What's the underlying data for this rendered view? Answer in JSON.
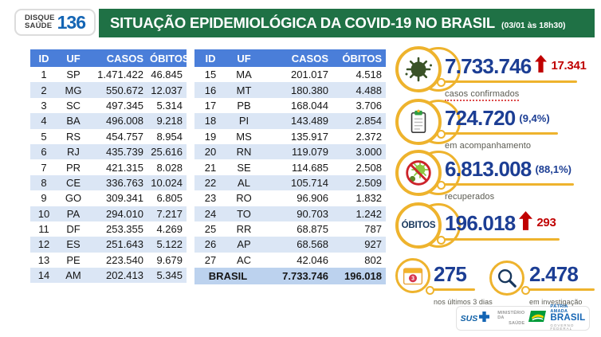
{
  "header": {
    "logo": {
      "line1": "DISQUE",
      "line2": "SAÚDE",
      "number": "136"
    },
    "title": "SITUAÇÃO EPIDEMIOLÓGICA DA COVID-19 NO BRASIL",
    "timestamp": "(03/01 às 18h30)"
  },
  "table": {
    "columns": [
      "ID",
      "UF",
      "CASOS",
      "ÓBITOS"
    ],
    "left_rows": [
      [
        "1",
        "SP",
        "1.471.422",
        "46.845"
      ],
      [
        "2",
        "MG",
        "550.672",
        "12.037"
      ],
      [
        "3",
        "SC",
        "497.345",
        "5.314"
      ],
      [
        "4",
        "BA",
        "496.008",
        "9.218"
      ],
      [
        "5",
        "RS",
        "454.757",
        "8.954"
      ],
      [
        "6",
        "RJ",
        "435.739",
        "25.616"
      ],
      [
        "7",
        "PR",
        "421.315",
        "8.028"
      ],
      [
        "8",
        "CE",
        "336.763",
        "10.024"
      ],
      [
        "9",
        "GO",
        "309.341",
        "6.805"
      ],
      [
        "10",
        "PA",
        "294.010",
        "7.217"
      ],
      [
        "11",
        "DF",
        "253.355",
        "4.269"
      ],
      [
        "12",
        "ES",
        "251.643",
        "5.122"
      ],
      [
        "13",
        "PE",
        "223.540",
        "9.679"
      ],
      [
        "14",
        "AM",
        "202.413",
        "5.345"
      ]
    ],
    "right_rows": [
      [
        "15",
        "MA",
        "201.017",
        "4.518"
      ],
      [
        "16",
        "MT",
        "180.380",
        "4.488"
      ],
      [
        "17",
        "PB",
        "168.044",
        "3.706"
      ],
      [
        "18",
        "PI",
        "143.489",
        "2.854"
      ],
      [
        "19",
        "MS",
        "135.917",
        "2.372"
      ],
      [
        "20",
        "RN",
        "119.079",
        "3.000"
      ],
      [
        "21",
        "SE",
        "114.685",
        "2.508"
      ],
      [
        "22",
        "AL",
        "105.714",
        "2.509"
      ],
      [
        "23",
        "RO",
        "96.906",
        "1.832"
      ],
      [
        "24",
        "TO",
        "90.703",
        "1.242"
      ],
      [
        "25",
        "RR",
        "68.875",
        "787"
      ],
      [
        "26",
        "AP",
        "68.568",
        "927"
      ],
      [
        "27",
        "AC",
        "42.046",
        "802"
      ]
    ],
    "total": {
      "label": "BRASIL",
      "casos": "7.733.746",
      "obitos": "196.018"
    }
  },
  "stats": {
    "confirmed": {
      "value": "7.733.746",
      "delta": "17.341",
      "label": "casos confirmados"
    },
    "monitoring": {
      "value": "724.720",
      "percent": "(9,4%)",
      "label": "em acompanhamento"
    },
    "recovered": {
      "value": "6.813.008",
      "percent": "(88,1%)",
      "label": "recuperados"
    },
    "deaths": {
      "icon_text": "ÓBITOS",
      "value": "196.018",
      "delta": "293"
    },
    "last_days": {
      "value": "275",
      "label": "nos últimos 3 dias",
      "badge": "3"
    },
    "investigation": {
      "value": "2.478",
      "label": "em investigação"
    }
  },
  "footer": {
    "sus_label": "SUS",
    "ministry": [
      "MINISTÉRIO DA",
      "SAÚDE"
    ],
    "brand_top": "PÁTRIA AMADA",
    "brand_name": "BRASIL",
    "brand_sub": "GOVERNO FEDERAL"
  },
  "colors": {
    "header_green": "#1f7145",
    "table_header_blue": "#4a7ed9",
    "row_alt_blue": "#dbe6f5",
    "total_row_blue": "#bcd2ee",
    "number_navy": "#1c3e94",
    "accent_red": "#c00000",
    "accent_yellow": "#eeb32d",
    "label_gray": "#5b5b52",
    "sus_blue": "#0e5fa6"
  }
}
